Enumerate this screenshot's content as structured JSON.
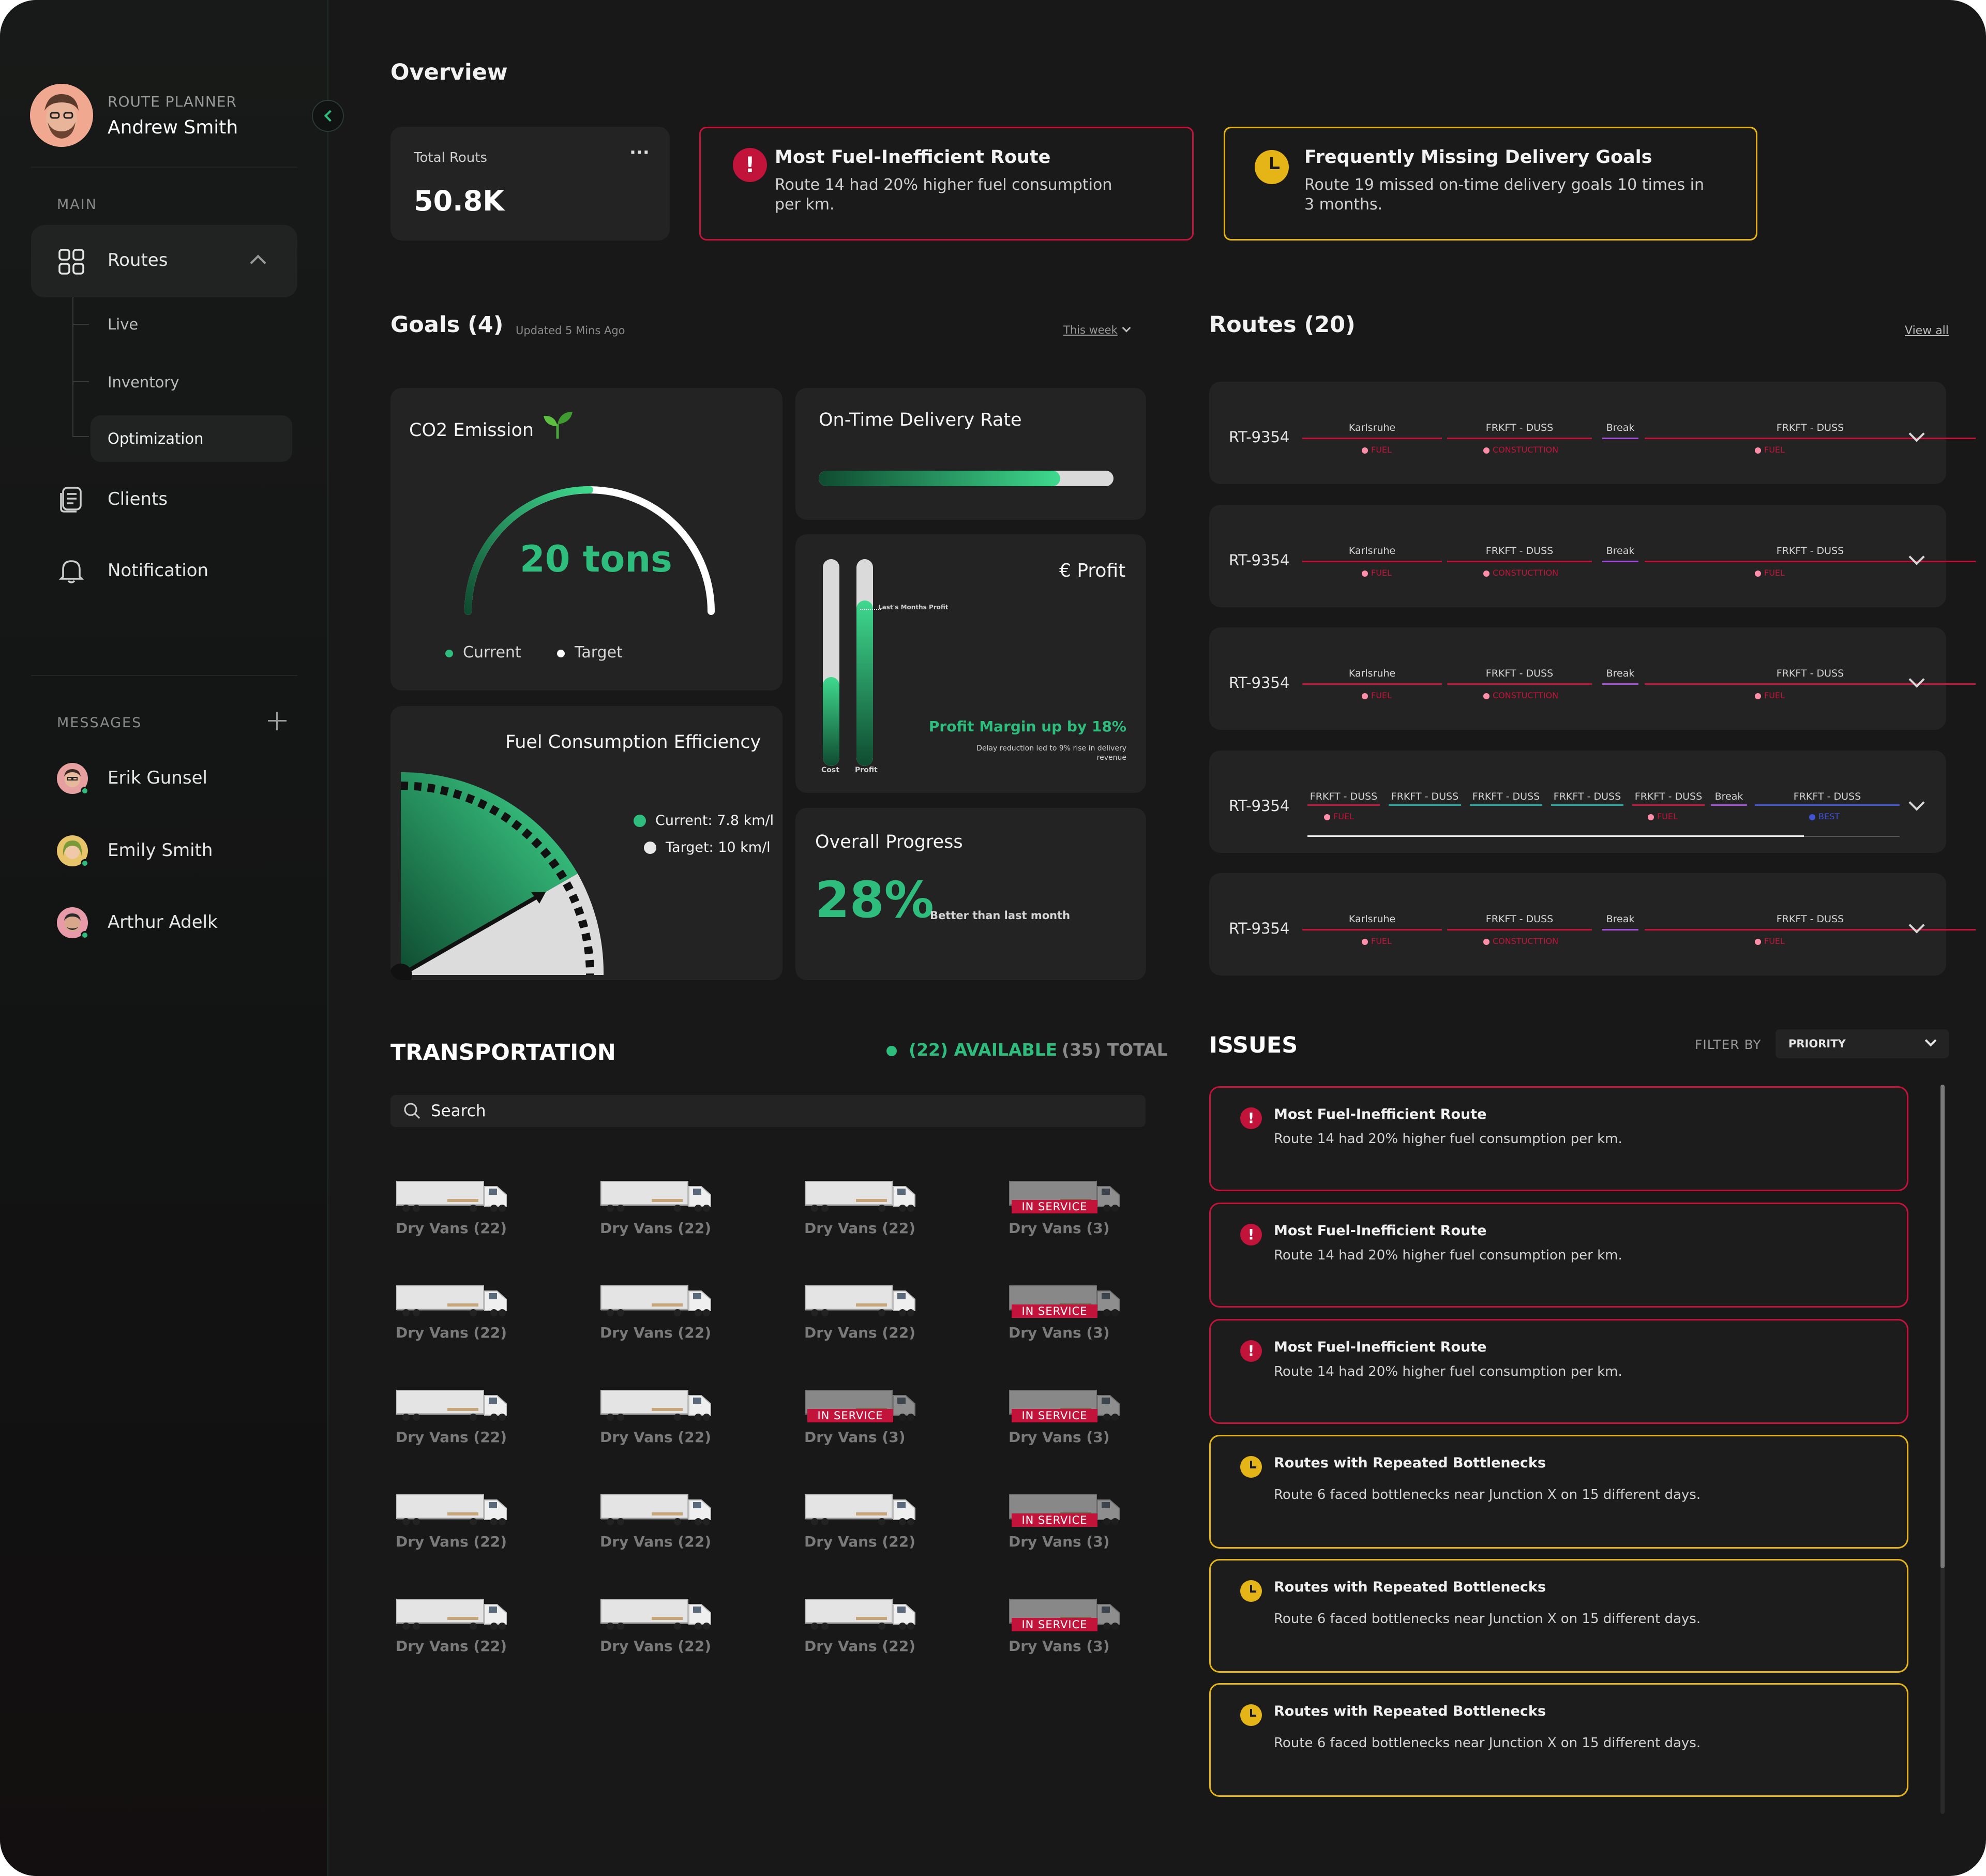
{
  "sidebar": {
    "role": "ROUTE PLANNER",
    "user": "Andrew Smith",
    "section_main": "MAIN",
    "routes_label": "Routes",
    "sub_items": [
      "Live",
      "Inventory",
      "Optimization"
    ],
    "clients_label": "Clients",
    "notification_label": "Notification",
    "messages_label": "MESSAGES",
    "contacts": [
      "Erik Gunsel",
      "Emily Smith",
      "Arthur Adelk"
    ]
  },
  "overview": {
    "title": "Overview",
    "total_label": "Total Routs",
    "total_value": "50.8K",
    "more_glyph": "···",
    "alert_red": {
      "title": "Most Fuel-Inefficient Route",
      "line1": "Route 14 had 20% higher fuel consumption",
      "line2": "per km."
    },
    "alert_yellow": {
      "title": "Frequently Missing Delivery Goals",
      "line1": "Route 19 missed on-time delivery goals 10 times in",
      "line2": "3 months."
    }
  },
  "goals": {
    "title": "Goals (4)",
    "updated": "Updated 5 Mins Ago",
    "filter": "This week",
    "co2": {
      "title": "CO2 Emission",
      "value": "20 tons",
      "legend_current": "Current",
      "legend_target": "Target",
      "progress": 0.5
    },
    "delivery": {
      "title": "On-Time Delivery Rate",
      "progress": 0.82
    },
    "profit": {
      "title": "€ Profit",
      "last_month": "Last's Months Profit",
      "headline": "Profit Margin up by 18%",
      "note1": "Delay reduction led to 9% rise in delivery",
      "note2": "revenue",
      "cost_label": "Cost",
      "profit_label": "Profit",
      "cost_level": 0.43,
      "profit_level": 0.8
    },
    "fuel": {
      "title": "Fuel Consumption Efficiency",
      "current": "Current: 7.8 km/l",
      "target": "Target: 10 km/l"
    },
    "progress": {
      "title": "Overall Progress",
      "value": "28%",
      "note": "Better than last month"
    }
  },
  "routes": {
    "title": "Routes (20)",
    "view_all": "View all",
    "standard": {
      "id": "RT-9354",
      "segments": [
        "Karlsruhe",
        "FRKFT - DUSS",
        "Break",
        "FRKFT - DUSS"
      ],
      "tags": [
        "FUEL",
        "CONSTUCTTION",
        "FUEL"
      ]
    },
    "special": {
      "id": "RT-9354",
      "segments": [
        "FRKFT - DUSS",
        "FRKFT - DUSS",
        "FRKFT - DUSS",
        "FRKFT - DUSS",
        "FRKFT - DUSS",
        "Break",
        "FRKFT - DUSS"
      ],
      "tags": [
        "FUEL",
        "FUEL",
        "BEST"
      ]
    }
  },
  "transport": {
    "title": "TRANSPORTATION",
    "available": "(22) AVAILABLE",
    "total": "(35) TOTAL",
    "search_placeholder": "Search",
    "dry_available": "Dry Vans (22)",
    "dry_service": "Dry Vans (3)",
    "service_badge": "IN SERVICE"
  },
  "issues": {
    "title": "ISSUES",
    "filter_label": "FILTER BY",
    "filter_value": "PRIORITY",
    "red_title": "Most Fuel-Inefficient Route",
    "red_desc": "Route 14 had 20% higher fuel consumption per km.",
    "yellow_title": "Routes with Repeated Bottlenecks",
    "yellow_desc": "Route 6 faced bottlenecks near Junction X on 15 different days."
  },
  "colors": {
    "accent": "#2ebd7c",
    "red": "#c2143a",
    "yellow": "#e5b517",
    "purple": "#a24fd6",
    "teal": "#1fa9a0",
    "blue": "#4254d6"
  }
}
